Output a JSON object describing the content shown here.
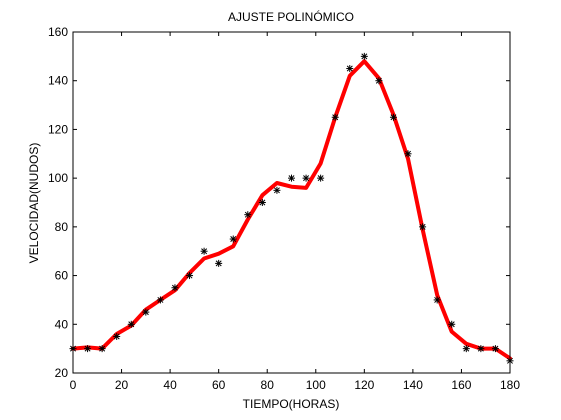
{
  "chart_data": {
    "type": "line",
    "title": "AJUSTE POLINÓMICO",
    "xlabel": "TIEMPO(HORAS)",
    "ylabel": "VELOCIDAD(NUDOS)",
    "xlim": [
      0,
      180
    ],
    "ylim": [
      20,
      160
    ],
    "xticks": [
      0,
      20,
      40,
      60,
      80,
      100,
      120,
      140,
      160,
      180
    ],
    "yticks": [
      20,
      40,
      60,
      80,
      100,
      120,
      140,
      160
    ],
    "grid": false,
    "series": [
      {
        "style": "markers",
        "marker": "asterisk",
        "color": "#000000",
        "x": [
          0,
          6,
          12,
          18,
          24,
          30,
          36,
          42,
          48,
          54,
          60,
          66,
          72,
          78,
          84,
          90,
          96,
          102,
          108,
          114,
          120,
          126,
          132,
          138,
          144,
          150,
          156,
          162,
          168,
          174,
          180
        ],
        "y": [
          30,
          30,
          30,
          35,
          40,
          45,
          50,
          55,
          60,
          70,
          65,
          75,
          85,
          90,
          95,
          100,
          100,
          100,
          125,
          145,
          150,
          140,
          125,
          110,
          80,
          50,
          40,
          30,
          30,
          30,
          25
        ]
      },
      {
        "style": "line",
        "color": "#ff0000",
        "x": [
          0,
          6,
          12,
          18,
          24,
          30,
          36,
          42,
          48,
          54,
          60,
          66,
          72,
          78,
          84,
          90,
          96,
          102,
          108,
          114,
          120,
          126,
          132,
          138,
          144,
          150,
          156,
          162,
          168,
          174,
          180
        ],
        "y": [
          30,
          30.5,
          30,
          36,
          39.5,
          46,
          50,
          54,
          61,
          67,
          69,
          72,
          83,
          93,
          98,
          96.5,
          96,
          106,
          125,
          142,
          148,
          141,
          126,
          108,
          79,
          52,
          37,
          32,
          30,
          30,
          26
        ]
      }
    ]
  }
}
